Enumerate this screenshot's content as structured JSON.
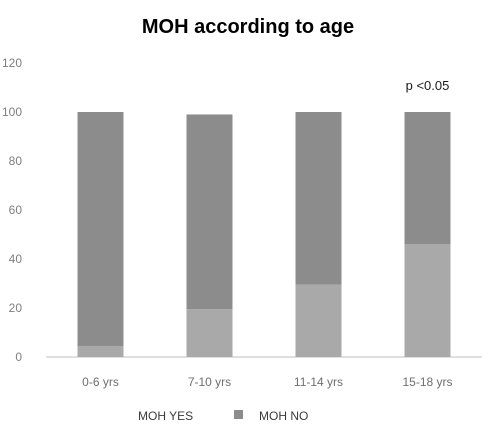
{
  "chart_data": {
    "type": "bar",
    "stacked": true,
    "title": "MOH according to age",
    "categories": [
      "0-6 yrs",
      "7-10 yrs",
      "11-14 yrs",
      "15-18 yrs"
    ],
    "series": [
      {
        "name": "MOH YES",
        "values": [
          4.5,
          19.5,
          29.5,
          46
        ],
        "color": "#a9a9a9"
      },
      {
        "name": "MOH NO",
        "values": [
          95.5,
          79.5,
          70.5,
          54
        ],
        "color": "#8c8c8c"
      }
    ],
    "ylim": [
      0,
      120
    ],
    "yticks": [
      0,
      20,
      40,
      60,
      80,
      100,
      120
    ],
    "grid": false,
    "legend": "bottom",
    "annotation": {
      "text": "p <0.05",
      "category": "15-18 yrs"
    }
  }
}
